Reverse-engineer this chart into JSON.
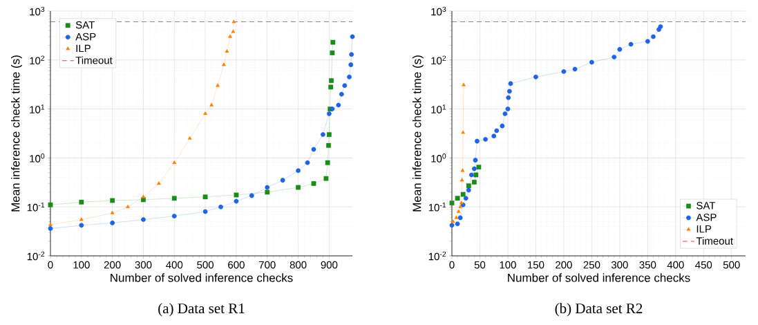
{
  "chart_data": [
    {
      "type": "line",
      "title": "(a) Data set R1",
      "xlabel": "Number of solved inference checks",
      "ylabel": "Mean inference check time (s)",
      "log": "y",
      "grid": true,
      "legend": "top left",
      "line_style": "solid",
      "xlim": [
        0,
        975
      ],
      "ylim": [
        0.01,
        1000
      ],
      "xticks": [
        0,
        100,
        200,
        300,
        400,
        500,
        600,
        700,
        800,
        900
      ],
      "yticks": [
        {
          "value": 0.01,
          "label": "10$^{-2}$"
        },
        {
          "value": 0.1,
          "label": "10$^{-1}$"
        },
        {
          "value": 1,
          "label": "10$^{0}$"
        },
        {
          "value": 10,
          "label": "10$^{1}$"
        },
        {
          "value": 100,
          "label": "10$^{2}$"
        },
        {
          "value": 1000,
          "label": "10$^{3}$"
        }
      ],
      "ref_lines": [
        {
          "axis": "y",
          "value": 600,
          "label": "Timeout",
          "color": "#ff0000",
          "line_style": "dashed"
        }
      ],
      "series": [
        {
          "name": "SAT",
          "color": "#1a8c1a",
          "marker": "square",
          "x": [
            0,
            100,
            200,
            300,
            400,
            500,
            600,
            700,
            800,
            850,
            890,
            895,
            898,
            900,
            903,
            905,
            907,
            910,
            912
          ],
          "values": [
            0.11,
            0.125,
            0.135,
            0.14,
            0.15,
            0.16,
            0.175,
            0.2,
            0.25,
            0.3,
            0.38,
            0.8,
            1.8,
            3,
            10,
            28,
            38,
            140,
            230
          ]
        },
        {
          "name": "ASP",
          "color": "#1f64e0",
          "marker": "circle",
          "x": [
            0,
            100,
            200,
            300,
            400,
            500,
            550,
            600,
            650,
            700,
            750,
            800,
            830,
            850,
            880,
            900,
            910,
            930,
            940,
            950,
            965,
            970,
            972,
            975
          ],
          "values": [
            0.036,
            0.042,
            0.047,
            0.055,
            0.065,
            0.08,
            0.1,
            0.13,
            0.17,
            0.25,
            0.35,
            0.55,
            0.8,
            1.5,
            3,
            8,
            10,
            12,
            20,
            30,
            45,
            80,
            130,
            300
          ]
        },
        {
          "name": "ILP",
          "color": "#ff8000",
          "marker": "triangle",
          "x": [
            0,
            100,
            200,
            250,
            300,
            350,
            400,
            450,
            500,
            520,
            540,
            560,
            570,
            580,
            590,
            592
          ],
          "values": [
            0.043,
            0.055,
            0.075,
            0.1,
            0.16,
            0.3,
            0.8,
            2.5,
            8,
            12,
            30,
            80,
            150,
            300,
            380,
            600
          ]
        }
      ]
    },
    {
      "type": "line",
      "title": "(b) Data set R2",
      "xlabel": "Number of solved inference checks",
      "ylabel": "Mean inference check time (s)",
      "log": "y",
      "grid": true,
      "legend": "bottom right",
      "line_style": "solid",
      "xlim": [
        0,
        525
      ],
      "ylim": [
        0.01,
        1000
      ],
      "xticks": [
        0,
        50,
        100,
        150,
        200,
        250,
        300,
        350,
        400,
        450,
        500
      ],
      "yticks": [
        {
          "value": 0.01,
          "label": "10$^{-2}$"
        },
        {
          "value": 0.1,
          "label": "10$^{-1}$"
        },
        {
          "value": 1,
          "label": "10$^{0}$"
        },
        {
          "value": 10,
          "label": "10$^{1}$"
        },
        {
          "value": 100,
          "label": "10$^{2}$"
        },
        {
          "value": 1000,
          "label": "10$^{3}$"
        }
      ],
      "ref_lines": [
        {
          "axis": "y",
          "value": 600,
          "label": "Timeout",
          "color": "#ff0000",
          "line_style": "dashed"
        }
      ],
      "series": [
        {
          "name": "SAT",
          "color": "#1a8c1a",
          "marker": "square",
          "x": [
            0,
            10,
            20,
            30,
            40,
            43,
            48
          ],
          "values": [
            0.12,
            0.15,
            0.18,
            0.27,
            0.32,
            0.45,
            0.65
          ]
        },
        {
          "name": "ASP",
          "color": "#1f64e0",
          "marker": "circle",
          "x": [
            0,
            10,
            15,
            20,
            25,
            30,
            35,
            40,
            42,
            45,
            60,
            75,
            80,
            90,
            95,
            100,
            101,
            103,
            105,
            150,
            200,
            220,
            250,
            290,
            300,
            320,
            350,
            360,
            370,
            373
          ],
          "values": [
            0.042,
            0.045,
            0.06,
            0.11,
            0.15,
            0.22,
            0.45,
            0.6,
            0.9,
            2.2,
            2.4,
            2.8,
            3.6,
            4.5,
            8,
            10,
            17,
            23,
            33,
            45,
            58,
            65,
            90,
            115,
            165,
            210,
            240,
            300,
            420,
            480
          ]
        },
        {
          "name": "ILP",
          "color": "#ff8000",
          "marker": "triangle",
          "x": [
            2,
            8,
            12,
            15,
            17,
            18,
            19,
            20,
            21
          ],
          "values": [
            0.05,
            0.06,
            0.08,
            0.1,
            0.12,
            0.35,
            0.55,
            3.3,
            31
          ]
        }
      ]
    }
  ]
}
